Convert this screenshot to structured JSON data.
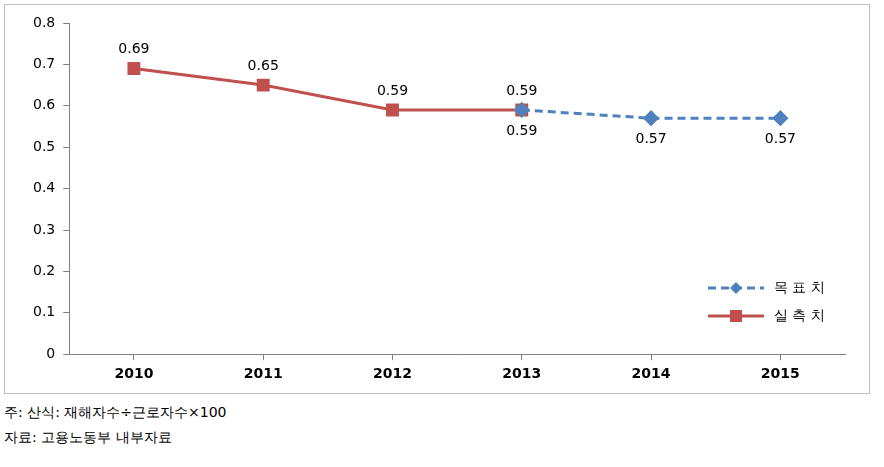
{
  "chart_data": {
    "type": "line",
    "categories": [
      "2010",
      "2011",
      "2012",
      "2013",
      "2014",
      "2015"
    ],
    "series": [
      {
        "name": "목 표 치",
        "color": "#4f81bd",
        "values": [
          null,
          null,
          null,
          0.59,
          0.57,
          0.57
        ],
        "marker": "diamond",
        "line_style": "dashed"
      },
      {
        "name": "실 측 치",
        "color": "#c0504d",
        "values": [
          0.69,
          0.65,
          0.59,
          0.59,
          null,
          null
        ],
        "marker": "square",
        "line_style": "solid"
      }
    ],
    "ylim": [
      0,
      0.8
    ],
    "yticks": [
      0,
      0.1,
      0.2,
      0.3,
      0.4,
      0.5,
      0.6,
      0.7,
      0.8
    ],
    "grid": false,
    "legend": "lower right",
    "data_labels": true,
    "annotations": [
      "주: 산식: 재해자수÷근로자수×100",
      "자료: 고용노동부 내부자료"
    ]
  }
}
